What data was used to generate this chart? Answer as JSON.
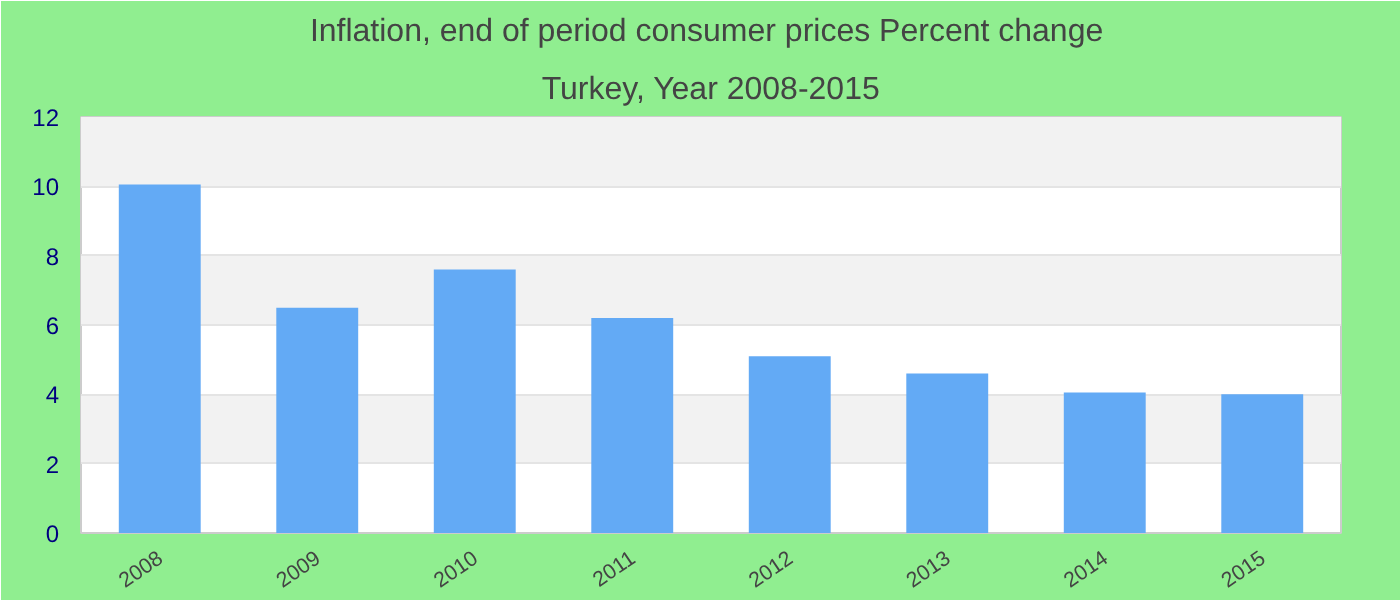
{
  "chart_data": {
    "type": "bar",
    "title": "Inflation, end of period consumer prices  Percent change",
    "subtitle": "Turkey, Year 2008-2015",
    "categories": [
      "2008",
      "2009",
      "2010",
      "2011",
      "2012",
      "2013",
      "2014",
      "2015"
    ],
    "values": [
      10.05,
      6.5,
      7.6,
      6.2,
      5.1,
      4.6,
      4.05,
      4.0
    ],
    "color": "#63aaf5",
    "ylim": [
      0,
      12
    ],
    "yticks": [
      0,
      2,
      4,
      6,
      8,
      10,
      12
    ],
    "grid": "y"
  }
}
